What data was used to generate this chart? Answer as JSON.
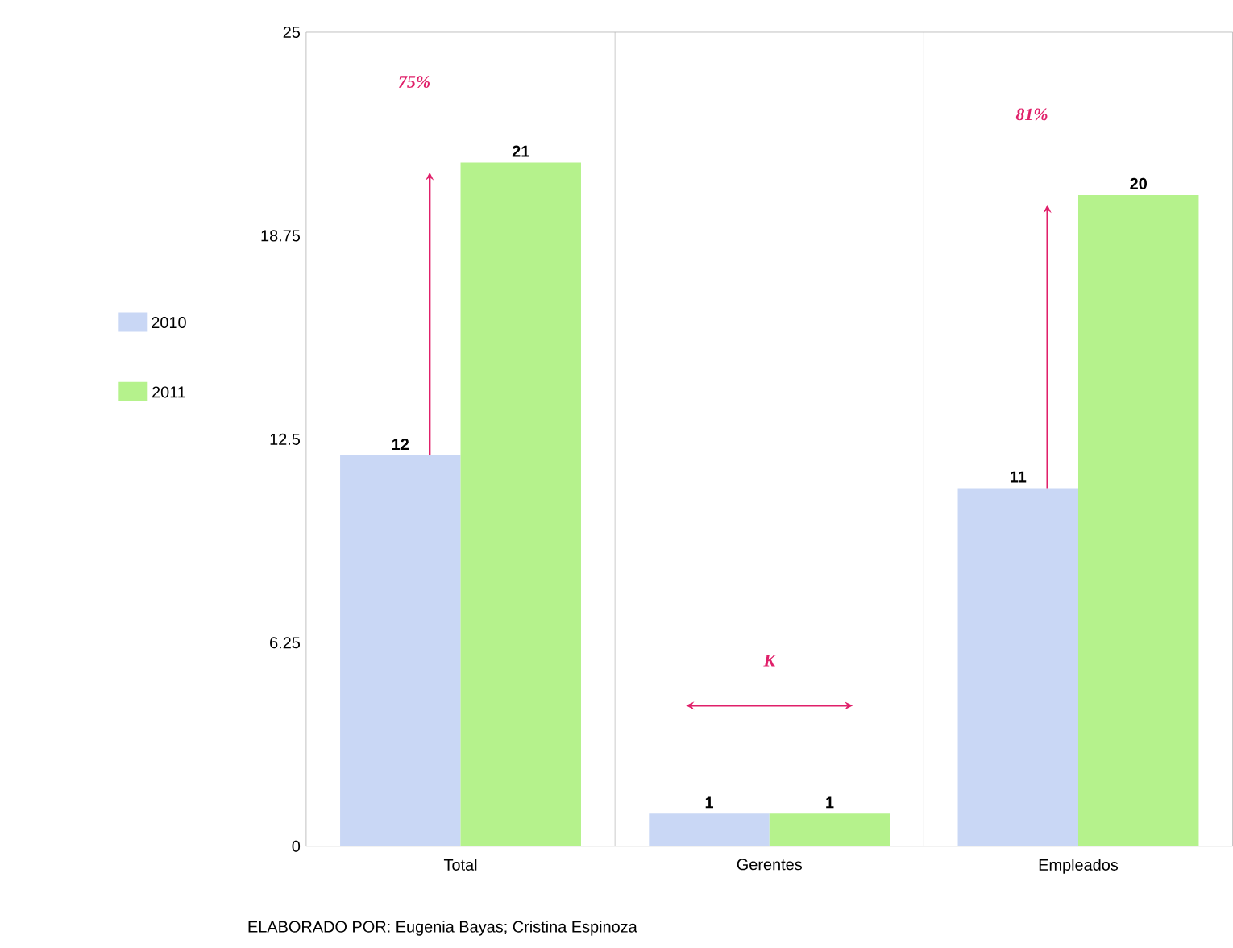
{
  "chart_data": {
    "type": "bar",
    "categories": [
      "Total",
      "Gerentes",
      "Empleados"
    ],
    "series": [
      {
        "name": "2010",
        "color": "#c9d7f5",
        "values": [
          12,
          1,
          11
        ]
      },
      {
        "name": "2011",
        "color": "#b5f28c",
        "values": [
          21,
          1,
          20
        ]
      }
    ],
    "ylim": [
      0,
      25
    ],
    "yticks": [
      0,
      6.25,
      12.5,
      18.75,
      25
    ],
    "grid": "x",
    "legend": "left",
    "data_labels": true,
    "annotations": [
      "75%",
      "K",
      "81%",
      "ELABORADO POR: Eugenia Bayas; Cristina Espinoza"
    ]
  }
}
